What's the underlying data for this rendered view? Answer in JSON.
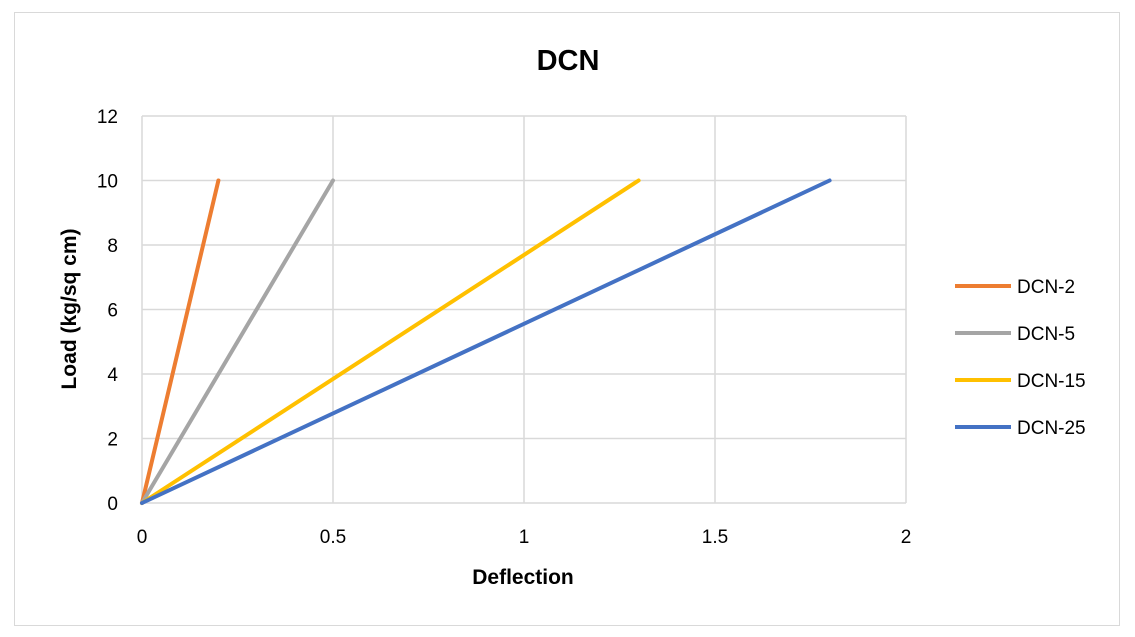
{
  "chart_data": {
    "type": "line",
    "title": "DCN",
    "xlabel": "Deflection",
    "ylabel": "Load (kg/sq cm)",
    "xlim": [
      0,
      2
    ],
    "ylim": [
      0,
      12
    ],
    "x_ticks": [
      "0",
      "0.5",
      "1",
      "1.5",
      "2"
    ],
    "y_ticks": [
      "0",
      "2",
      "4",
      "6",
      "8",
      "10",
      "12"
    ],
    "grid": true,
    "legend_position": "right",
    "series": [
      {
        "name": "DCN-2",
        "color": "#ed7d31",
        "x": [
          0,
          0.2
        ],
        "y": [
          0,
          10
        ]
      },
      {
        "name": "DCN-5",
        "color": "#a5a5a5",
        "x": [
          0,
          0.5
        ],
        "y": [
          0,
          10
        ]
      },
      {
        "name": "DCN-15",
        "color": "#ffc000",
        "x": [
          0,
          1.3
        ],
        "y": [
          0,
          10
        ]
      },
      {
        "name": "DCN-25",
        "color": "#4472c4",
        "x": [
          0,
          1.8
        ],
        "y": [
          0,
          10
        ]
      }
    ]
  }
}
